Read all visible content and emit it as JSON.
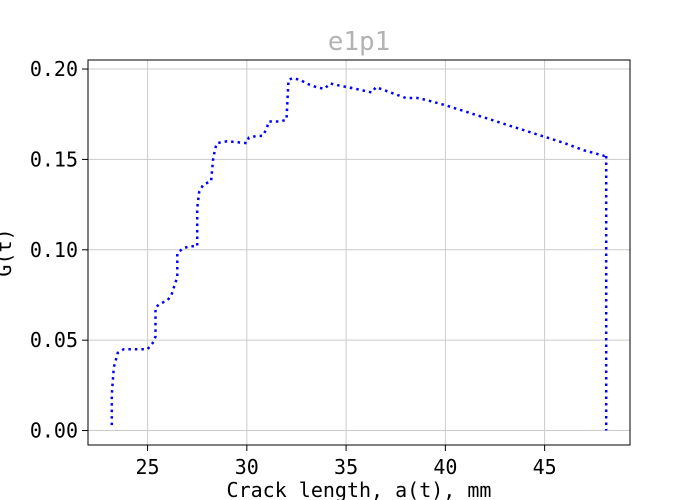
{
  "chart_data": {
    "type": "line",
    "title": "e1p1",
    "title_color": "#b3b3b3",
    "xlabel": "Crack length, a(t), mm",
    "ylabel": "G(t)",
    "xlim": [
      22,
      49.3
    ],
    "ylim": [
      -0.008,
      0.205
    ],
    "grid": true,
    "x_ticks": [
      25,
      30,
      35,
      40,
      45
    ],
    "x_tick_labels": [
      "25",
      "30",
      "35",
      "40",
      "45"
    ],
    "y_ticks": [
      0.0,
      0.05,
      0.1,
      0.15,
      0.2
    ],
    "y_tick_labels": [
      "0.00",
      "0.05",
      "0.10",
      "0.15",
      "0.20"
    ],
    "series": [
      {
        "color": "#0000ff",
        "linestyle": "dotted",
        "x": [
          23.2,
          23.2,
          23.3,
          23.5,
          23.8,
          24.2,
          25.0,
          25.3,
          25.4,
          25.4,
          25.6,
          26.0,
          26.2,
          26.5,
          26.5,
          26.8,
          27.2,
          27.5,
          27.5,
          27.6,
          27.8,
          28.2,
          28.3,
          28.4,
          28.5,
          29.0,
          30.0,
          30.1,
          30.5,
          30.8,
          31.0,
          31.1,
          31.4,
          31.7,
          32.0,
          32.1,
          32.3,
          32.7,
          33.0,
          33.5,
          33.9,
          34.1,
          34.2,
          34.6,
          35.5,
          36.3,
          36.5,
          37.0,
          38.0,
          38.6,
          39.0,
          40.0,
          42.0,
          44.0,
          46.0,
          47.0,
          48.0,
          48.1,
          48.1
        ],
        "y": [
          0.003,
          0.02,
          0.035,
          0.043,
          0.045,
          0.045,
          0.045,
          0.049,
          0.052,
          0.068,
          0.07,
          0.072,
          0.075,
          0.085,
          0.098,
          0.101,
          0.102,
          0.102,
          0.123,
          0.132,
          0.136,
          0.138,
          0.15,
          0.156,
          0.159,
          0.16,
          0.159,
          0.162,
          0.163,
          0.163,
          0.167,
          0.171,
          0.171,
          0.171,
          0.172,
          0.194,
          0.195,
          0.194,
          0.192,
          0.19,
          0.189,
          0.191,
          0.192,
          0.191,
          0.189,
          0.187,
          0.19,
          0.188,
          0.184,
          0.184,
          0.183,
          0.18,
          0.173,
          0.166,
          0.159,
          0.155,
          0.152,
          0.153,
          0.0
        ]
      }
    ]
  }
}
